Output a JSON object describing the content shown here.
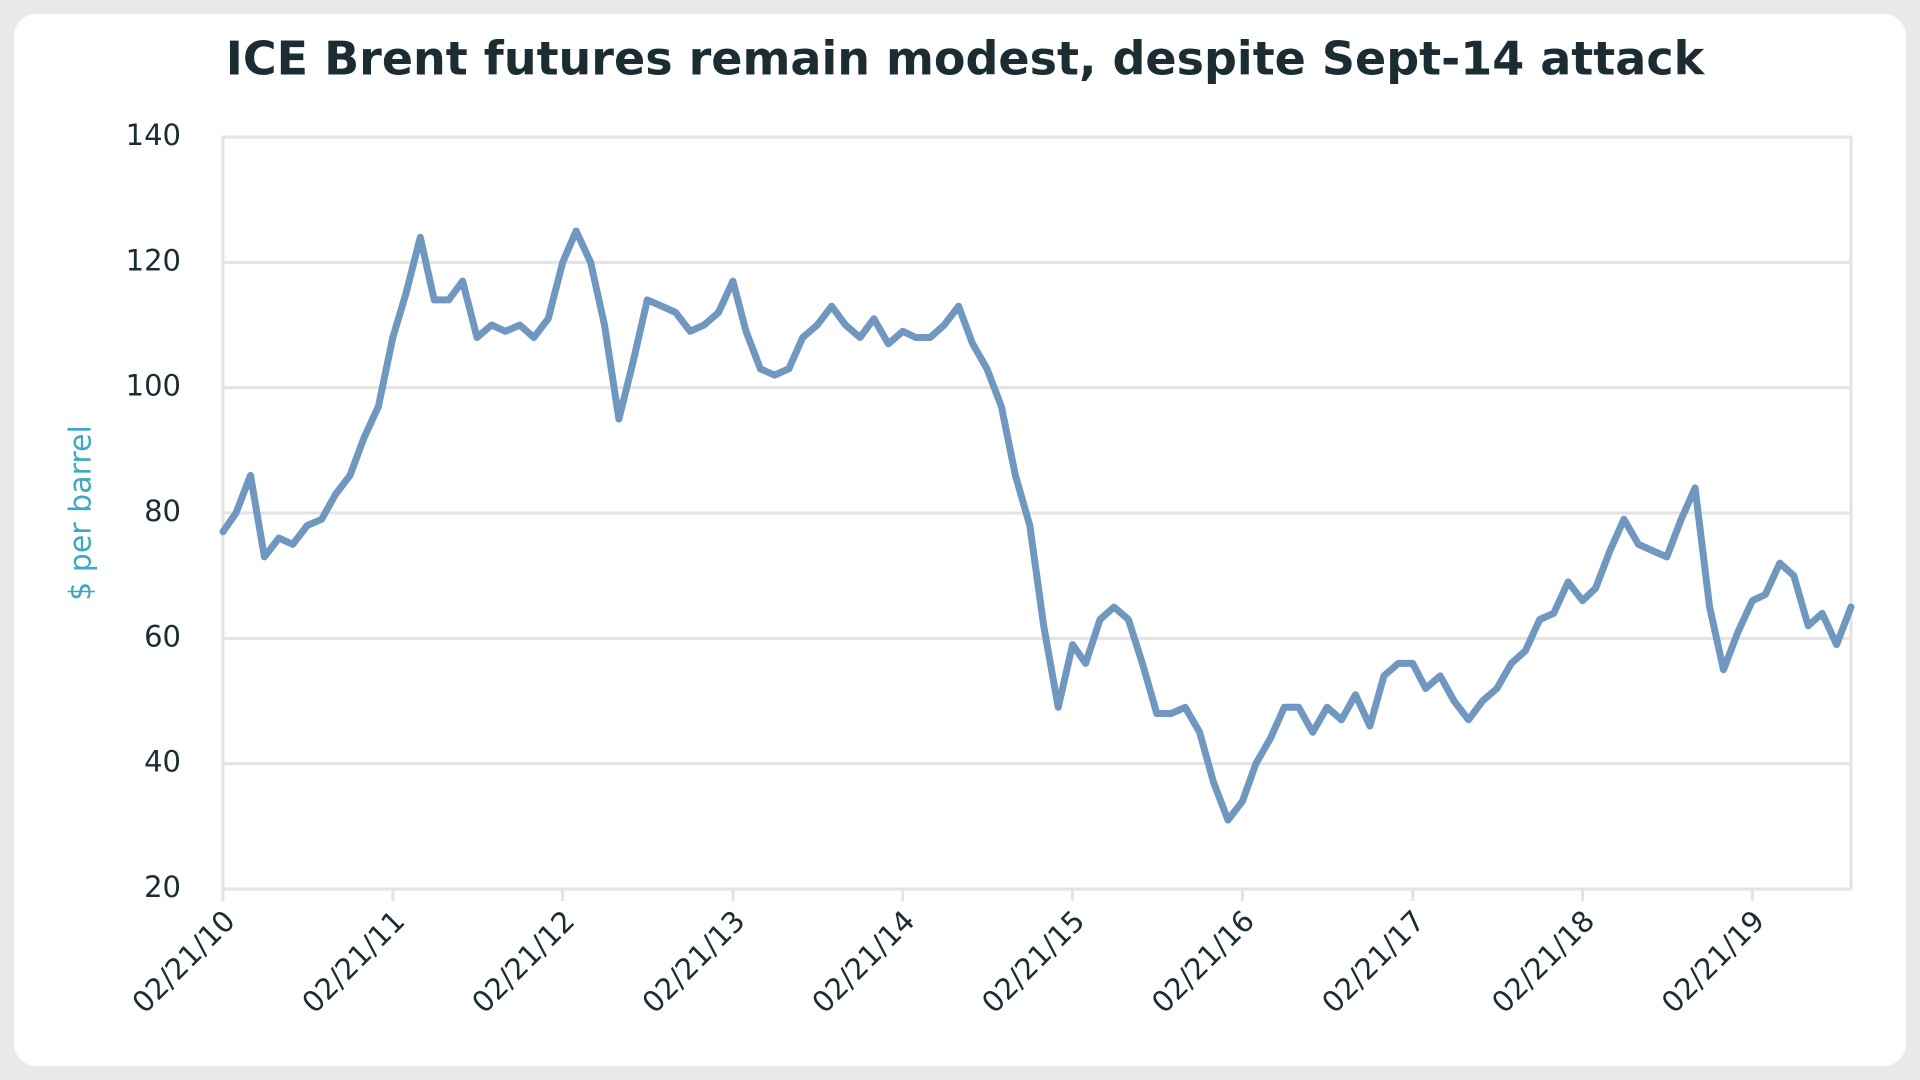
{
  "chart_data": {
    "type": "line",
    "title": "ICE Brent futures remain modest, despite Sept-14 attack",
    "y_label": "$ per barrel",
    "x": [
      "02/21/10",
      "03/21/10",
      "04/21/10",
      "05/21/10",
      "06/21/10",
      "07/21/10",
      "08/21/10",
      "09/21/10",
      "10/21/10",
      "11/21/10",
      "12/21/10",
      "01/21/11",
      "02/21/11",
      "03/21/11",
      "04/21/11",
      "05/21/11",
      "06/21/11",
      "07/21/11",
      "08/21/11",
      "09/21/11",
      "10/21/11",
      "11/21/11",
      "12/21/11",
      "01/21/12",
      "02/21/12",
      "03/21/12",
      "04/21/12",
      "05/21/12",
      "06/21/12",
      "07/21/12",
      "08/21/12",
      "09/21/12",
      "10/21/12",
      "11/21/12",
      "12/21/12",
      "01/21/13",
      "02/21/13",
      "03/21/13",
      "04/21/13",
      "05/21/13",
      "06/21/13",
      "07/21/13",
      "08/21/13",
      "09/21/13",
      "10/21/13",
      "11/21/13",
      "12/21/13",
      "01/21/14",
      "02/21/14",
      "03/21/14",
      "04/21/14",
      "05/21/14",
      "06/21/14",
      "07/21/14",
      "08/21/14",
      "09/21/14",
      "10/21/14",
      "11/21/14",
      "12/21/14",
      "01/21/15",
      "02/21/15",
      "03/21/15",
      "04/21/15",
      "05/21/15",
      "06/21/15",
      "07/21/15",
      "08/21/15",
      "09/21/15",
      "10/21/15",
      "11/21/15",
      "12/21/15",
      "01/21/16",
      "02/21/16",
      "03/21/16",
      "04/21/16",
      "05/21/16",
      "06/21/16",
      "07/21/16",
      "08/21/16",
      "09/21/16",
      "10/21/16",
      "11/21/16",
      "12/21/16",
      "01/21/17",
      "02/21/17",
      "03/21/17",
      "04/21/17",
      "05/21/17",
      "06/21/17",
      "07/21/17",
      "08/21/17",
      "09/21/17",
      "10/21/17",
      "11/21/17",
      "12/21/17",
      "01/21/18",
      "02/21/18",
      "03/21/18",
      "04/21/18",
      "05/21/18",
      "06/21/18",
      "07/21/18",
      "08/21/18",
      "09/21/18",
      "10/21/18",
      "11/21/18",
      "12/21/18",
      "01/21/19",
      "02/21/19",
      "03/21/19",
      "04/21/19",
      "05/21/19",
      "06/21/19",
      "07/21/19",
      "08/21/19",
      "09/21/19"
    ],
    "series": [
      {
        "name": "ICE Brent",
        "color": "#6f97bf",
        "values": [
          77,
          80,
          86,
          73,
          76,
          75,
          78,
          79,
          83,
          86,
          92,
          97,
          108,
          115,
          124,
          114,
          114,
          117,
          108,
          110,
          109,
          110,
          108,
          111,
          120,
          125,
          120,
          110,
          95,
          104,
          114,
          113,
          112,
          109,
          110,
          112,
          117,
          109,
          103,
          102,
          103,
          108,
          110,
          113,
          110,
          108,
          111,
          107,
          109,
          108,
          108,
          110,
          113,
          107,
          103,
          97,
          86,
          78,
          62,
          49,
          59,
          56,
          63,
          65,
          63,
          56,
          48,
          48,
          49,
          45,
          37,
          31,
          34,
          40,
          44,
          49,
          49,
          45,
          49,
          47,
          51,
          46,
          54,
          56,
          56,
          52,
          54,
          50,
          47,
          50,
          52,
          56,
          58,
          63,
          64,
          69,
          66,
          68,
          74,
          79,
          75,
          74,
          73,
          79,
          84,
          65,
          55,
          61,
          66,
          67,
          72,
          70,
          62,
          64,
          59,
          65
        ]
      }
    ],
    "xlim": [
      "02/21/10",
      "09/21/19"
    ],
    "xticks": [
      "02/21/10",
      "02/21/11",
      "02/21/12",
      "02/21/13",
      "02/21/14",
      "02/21/15",
      "02/21/16",
      "02/21/17",
      "02/21/18",
      "02/21/19"
    ],
    "ylim": [
      20,
      140
    ],
    "yticks": [
      20,
      40,
      60,
      80,
      100,
      120,
      140
    ],
    "grid": true
  }
}
